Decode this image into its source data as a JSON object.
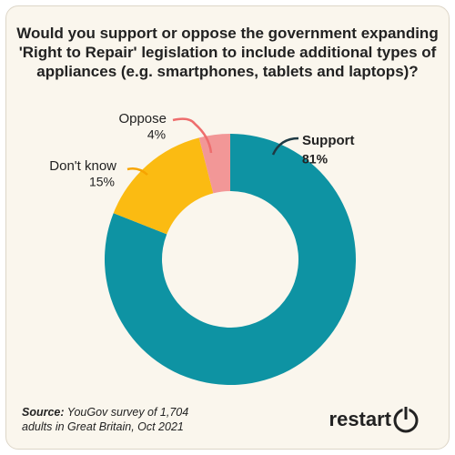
{
  "chart_data": {
    "type": "donut",
    "title": "Would you support or oppose the government expanding 'Right to Repair' legislation to include additional types of appliances (e.g. smartphones, tablets and laptops)?",
    "categories": [
      "Support",
      "Don't know",
      "Oppose"
    ],
    "values": [
      81,
      15,
      4
    ],
    "value_labels": [
      "81%",
      "15%",
      "4%"
    ],
    "colors": [
      "#0e93a3",
      "#fbbb12",
      "#f29797"
    ],
    "source_label": "Source:",
    "source": "YouGov survey of 1,704 adults in Great Britain, Oct 2021",
    "brand": "restart"
  }
}
